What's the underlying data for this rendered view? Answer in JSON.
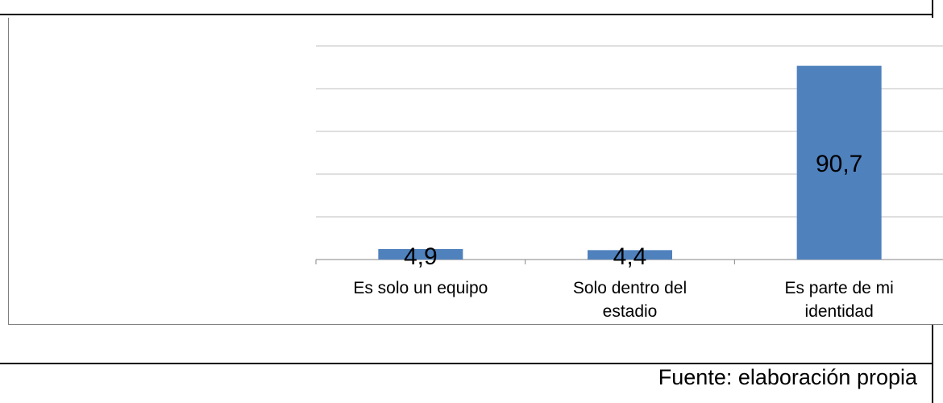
{
  "source_note": "Fuente: elaboración propia",
  "chart_data": {
    "type": "bar",
    "categories": [
      [
        "Es solo un equipo"
      ],
      [
        "Solo dentro del",
        "estadio"
      ],
      [
        "Es parte de mi",
        "identidad"
      ]
    ],
    "values": [
      4.9,
      4.4,
      90.7
    ],
    "data_labels": [
      "4,9",
      "4,4",
      "90,7"
    ],
    "ylim": [
      0,
      100
    ],
    "grid": true,
    "bar_color": "#4f81bd",
    "grid_color": "#bfbfbf"
  }
}
